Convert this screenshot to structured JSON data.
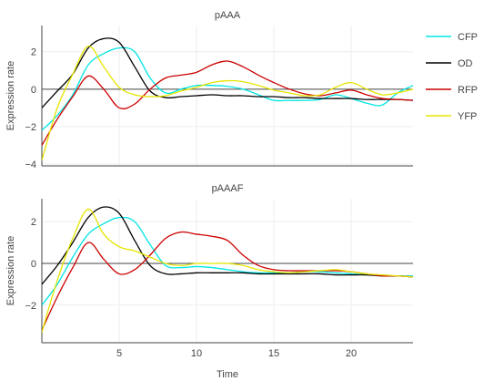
{
  "chart_data": {
    "type": "line",
    "xlabel": "Time",
    "ylabel": "Expression rate",
    "xlim": [
      0,
      24
    ],
    "xticks": [
      5,
      10,
      15,
      20
    ],
    "grid": true,
    "legend": {
      "placement": "right",
      "entries": [
        {
          "name": "CFP",
          "color": "#00e5e5"
        },
        {
          "name": "OD",
          "color": "#000000"
        },
        {
          "name": "RFP",
          "color": "#cc0000"
        },
        {
          "name": "YFP",
          "color": "#e5e500"
        }
      ]
    },
    "panels": [
      {
        "title": "pAAA",
        "ylim": [
          -4.1,
          3.4
        ],
        "yticks": [
          -4,
          -2,
          0,
          2
        ],
        "series": [
          {
            "name": "CFP",
            "color": "#00e5e5",
            "x": [
              0,
              1,
              2,
              3,
              4,
              5,
              6,
              7,
              8,
              9,
              10,
              11,
              12,
              13,
              14,
              15,
              16,
              17,
              18,
              19,
              20,
              21,
              22,
              23,
              24
            ],
            "y": [
              -2.2,
              -1.4,
              -0.3,
              1.3,
              1.9,
              2.2,
              2.0,
              0.6,
              -0.2,
              0.0,
              0.2,
              0.2,
              0.15,
              0.0,
              -0.3,
              -0.6,
              -0.6,
              -0.6,
              -0.55,
              -0.3,
              -0.5,
              -0.75,
              -0.85,
              -0.2,
              0.2
            ]
          },
          {
            "name": "OD",
            "color": "#000000",
            "x": [
              0,
              1,
              2,
              3,
              4,
              5,
              6,
              7,
              8,
              9,
              10,
              11,
              12,
              13,
              14,
              15,
              16,
              17,
              18,
              19,
              20,
              21,
              22,
              23,
              24
            ],
            "y": [
              -1.0,
              -0.1,
              0.8,
              2.2,
              2.7,
              2.5,
              1.2,
              -0.1,
              -0.45,
              -0.4,
              -0.35,
              -0.3,
              -0.35,
              -0.35,
              -0.4,
              -0.4,
              -0.45,
              -0.45,
              -0.5,
              -0.5,
              -0.5,
              -0.55,
              -0.55,
              -0.55,
              -0.6
            ]
          },
          {
            "name": "RFP",
            "color": "#cc0000",
            "x": [
              0,
              1,
              2,
              3,
              4,
              5,
              6,
              7,
              8,
              9,
              10,
              11,
              12,
              13,
              14,
              15,
              16,
              17,
              18,
              19,
              20,
              21,
              22,
              23,
              24
            ],
            "y": [
              -3.0,
              -1.6,
              -0.4,
              0.7,
              0.0,
              -1.0,
              -0.8,
              0.0,
              0.6,
              0.75,
              0.9,
              1.3,
              1.5,
              1.2,
              0.75,
              0.35,
              0.0,
              -0.25,
              -0.35,
              -0.2,
              -0.05,
              -0.3,
              -0.5,
              -0.55,
              -0.6
            ]
          },
          {
            "name": "YFP",
            "color": "#e5e500",
            "x": [
              0,
              1,
              2,
              3,
              4,
              5,
              6,
              7,
              8,
              9,
              10,
              11,
              12,
              13,
              14,
              15,
              16,
              17,
              18,
              19,
              20,
              21,
              22,
              23,
              24
            ],
            "y": [
              -3.8,
              -1.0,
              0.8,
              2.3,
              1.2,
              0.1,
              -0.3,
              -0.4,
              -0.35,
              -0.1,
              0.1,
              0.35,
              0.45,
              0.4,
              0.2,
              -0.05,
              -0.2,
              -0.35,
              -0.3,
              0.1,
              0.35,
              0.0,
              -0.3,
              -0.2,
              0.0
            ]
          }
        ]
      },
      {
        "title": "pAAAF",
        "ylim": [
          -3.8,
          3.1
        ],
        "yticks": [
          -2,
          0,
          2
        ],
        "series": [
          {
            "name": "CFP",
            "color": "#00e5e5",
            "x": [
              0,
              1,
              2,
              3,
              4,
              5,
              6,
              7,
              8,
              9,
              10,
              11,
              12,
              13,
              14,
              15,
              16,
              17,
              18,
              19,
              20,
              21,
              22,
              23,
              24
            ],
            "y": [
              -2.0,
              -1.0,
              0.3,
              1.4,
              1.9,
              2.2,
              2.0,
              0.9,
              -0.1,
              -0.2,
              -0.15,
              -0.2,
              -0.3,
              -0.4,
              -0.45,
              -0.45,
              -0.45,
              -0.4,
              -0.4,
              -0.45,
              -0.5,
              -0.55,
              -0.6,
              -0.6,
              -0.6
            ]
          },
          {
            "name": "OD",
            "color": "#000000",
            "x": [
              0,
              1,
              2,
              3,
              4,
              5,
              6,
              7,
              8,
              9,
              10,
              11,
              12,
              13,
              14,
              15,
              16,
              17,
              18,
              19,
              20,
              21,
              22,
              23,
              24
            ],
            "y": [
              -1.0,
              -0.1,
              1.0,
              2.2,
              2.7,
              2.4,
              1.1,
              -0.1,
              -0.5,
              -0.5,
              -0.45,
              -0.45,
              -0.45,
              -0.45,
              -0.5,
              -0.5,
              -0.5,
              -0.5,
              -0.5,
              -0.55,
              -0.55,
              -0.55,
              -0.6,
              -0.6,
              -0.65
            ]
          },
          {
            "name": "RFP",
            "color": "#cc0000",
            "x": [
              0,
              1,
              2,
              3,
              4,
              5,
              6,
              7,
              8,
              9,
              10,
              11,
              12,
              13,
              14,
              15,
              16,
              17,
              18,
              19,
              20,
              21,
              22,
              23,
              24
            ],
            "y": [
              -3.2,
              -1.6,
              -0.2,
              1.0,
              0.2,
              -0.5,
              -0.3,
              0.4,
              1.2,
              1.5,
              1.4,
              1.3,
              1.1,
              0.4,
              -0.1,
              -0.3,
              -0.35,
              -0.35,
              -0.35,
              -0.35,
              -0.4,
              -0.5,
              -0.6,
              -0.6,
              -0.65
            ]
          },
          {
            "name": "YFP",
            "color": "#e5e500",
            "x": [
              0,
              1,
              2,
              3,
              4,
              5,
              6,
              7,
              8,
              9,
              10,
              11,
              12,
              13,
              14,
              15,
              16,
              17,
              18,
              19,
              20,
              21,
              22,
              23,
              24
            ],
            "y": [
              -3.3,
              -0.8,
              1.2,
              2.6,
              1.4,
              0.8,
              0.6,
              0.3,
              0.0,
              -0.1,
              0.0,
              0.0,
              0.0,
              -0.1,
              -0.3,
              -0.4,
              -0.45,
              -0.4,
              -0.35,
              -0.3,
              -0.4,
              -0.5,
              -0.55,
              -0.6,
              -0.65
            ]
          }
        ]
      }
    ]
  }
}
